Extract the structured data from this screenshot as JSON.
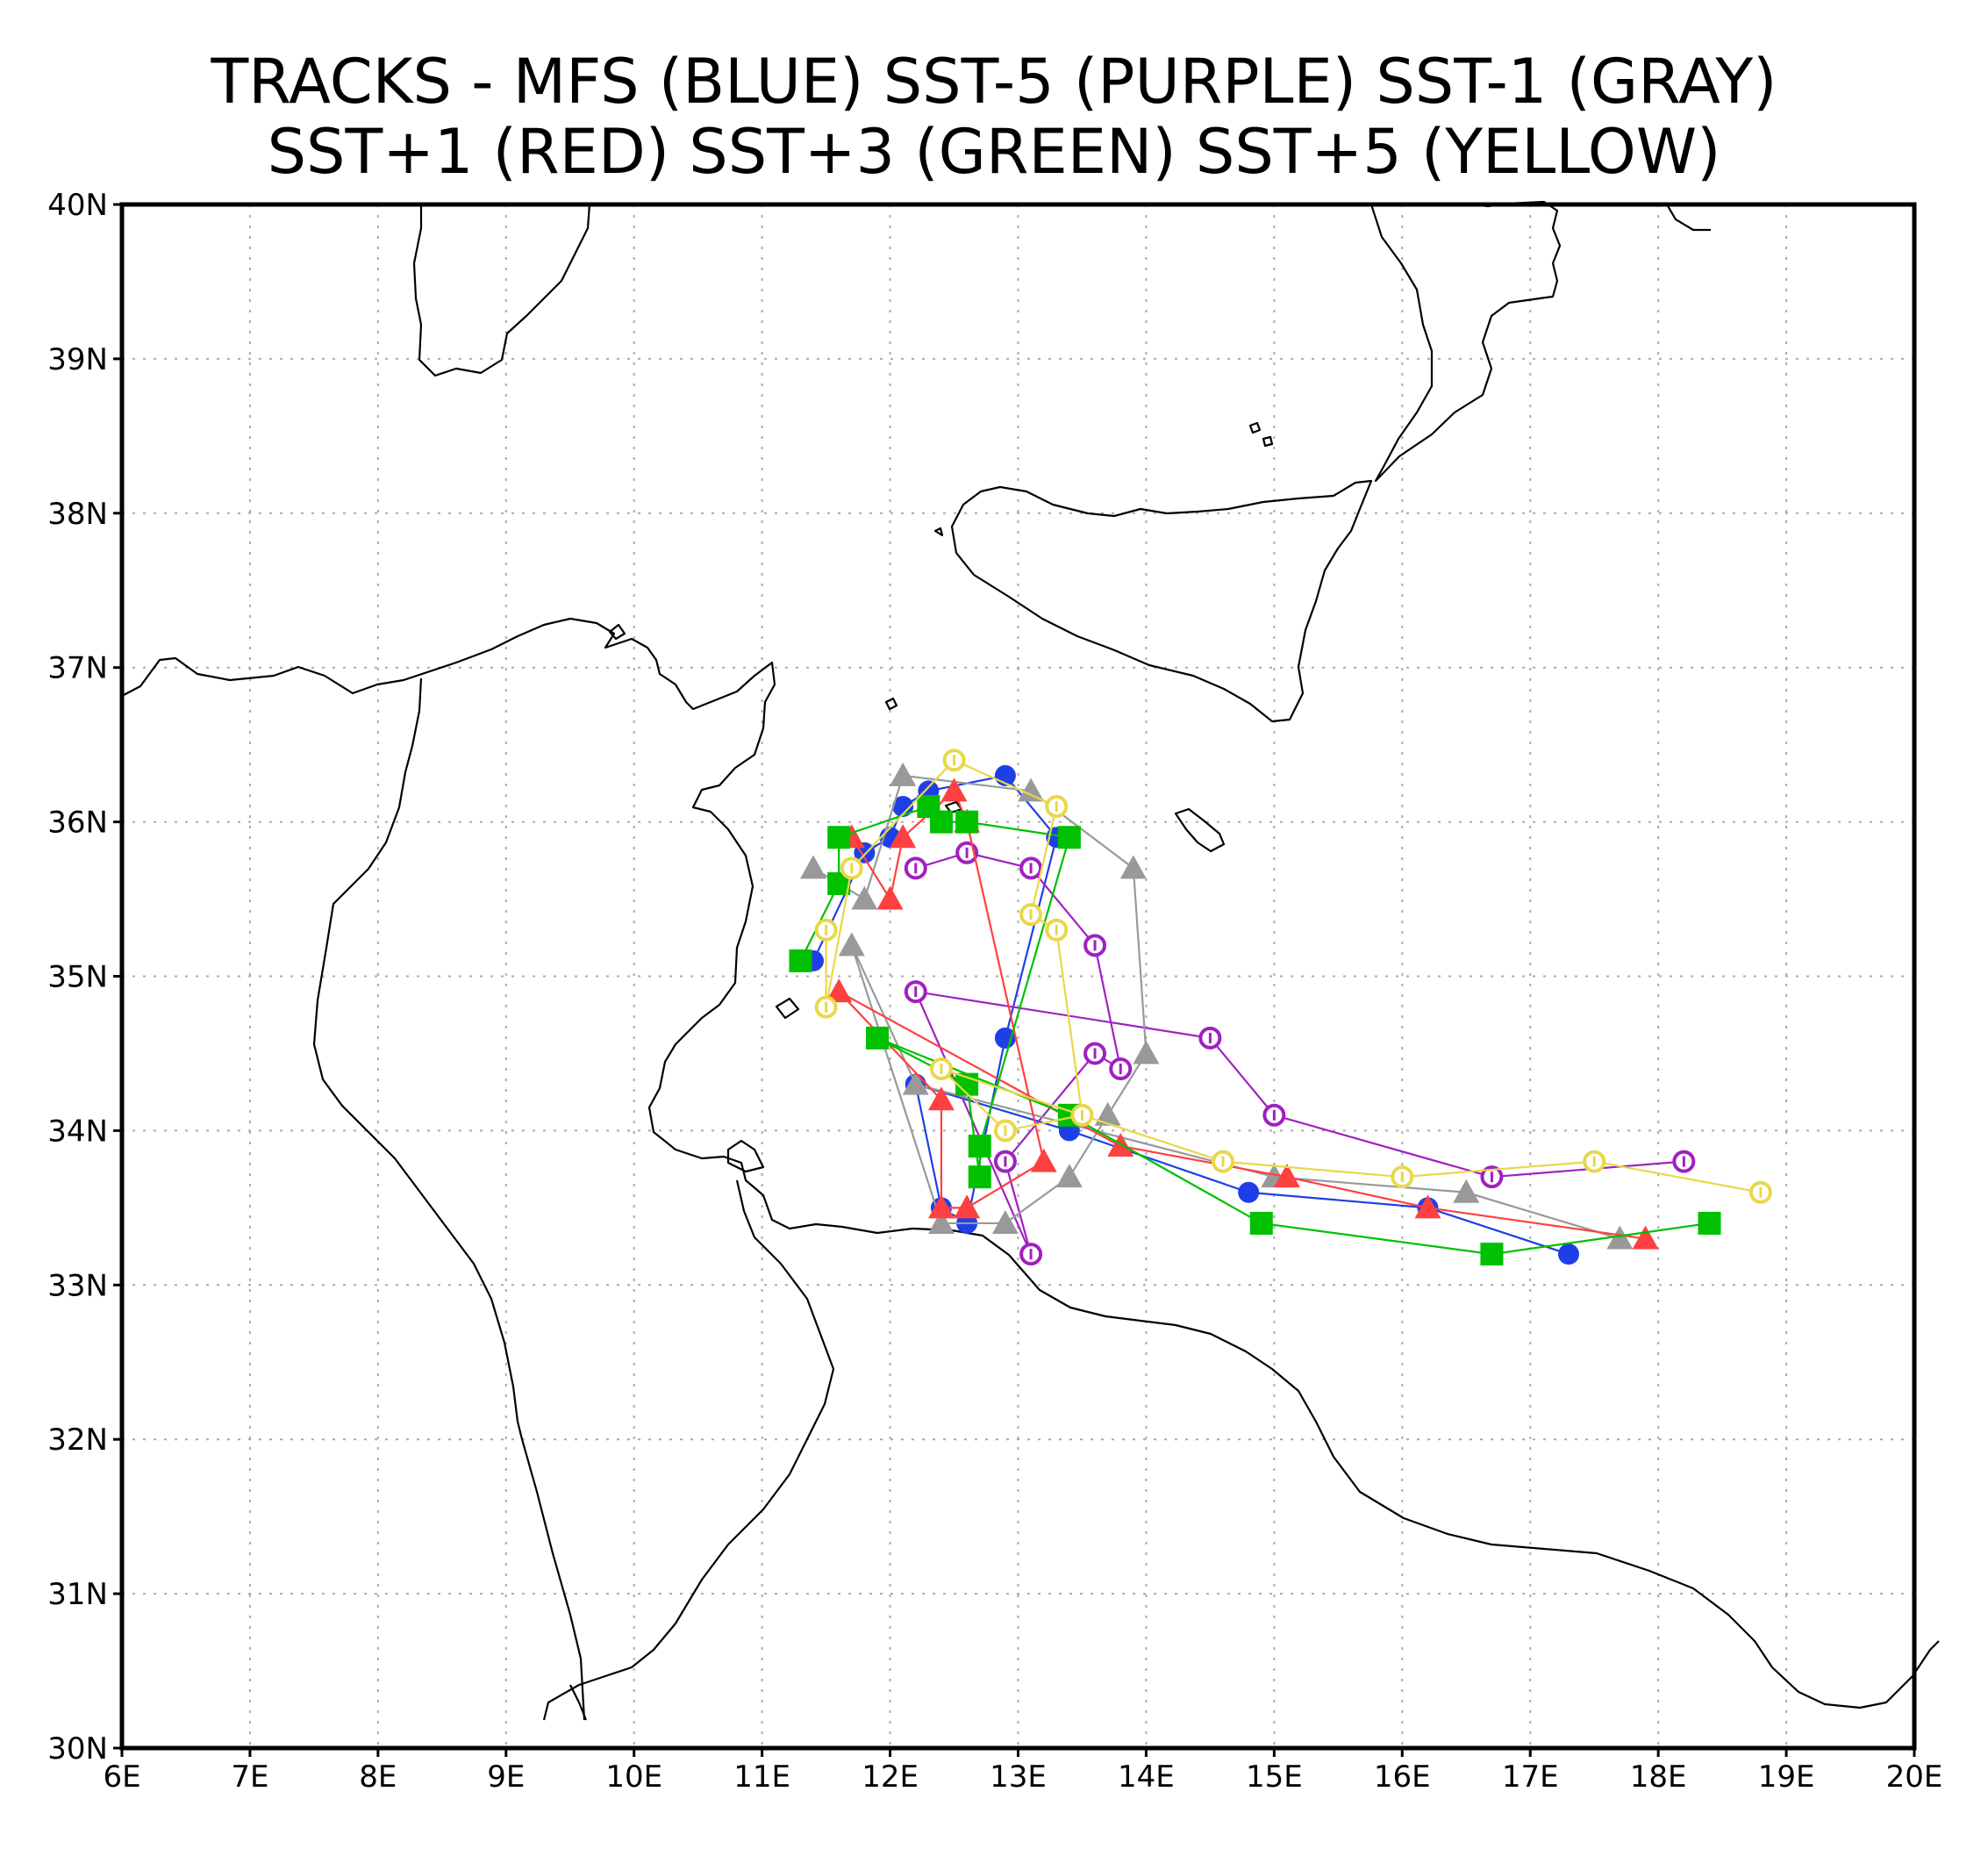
{
  "title": {
    "line1": "TRACKS - MFS (BLUE) SST-5 (PURPLE)  SST-1 (GRAY)",
    "line2": "SST+1 (RED)  SST+3 (GREEN)  SST+5 (YELLOW)"
  },
  "map": {
    "lon_range": [
      6,
      20
    ],
    "lat_range": [
      30,
      40
    ],
    "x_tick_labels": [
      "6E",
      "7E",
      "8E",
      "9E",
      "10E",
      "11E",
      "12E",
      "13E",
      "14E",
      "15E",
      "16E",
      "17E",
      "18E",
      "19E",
      "20E"
    ],
    "y_tick_labels": [
      "30N",
      "31N",
      "32N",
      "33N",
      "34N",
      "35N",
      "36N",
      "37N",
      "38N",
      "39N",
      "40N"
    ],
    "grid": "dotted",
    "coastline_color": "#000000"
  },
  "chart_data": {
    "type": "scatter",
    "xlim": [
      6,
      20
    ],
    "ylim": [
      30,
      40
    ],
    "series": [
      {
        "name": "MFS (BLUE)",
        "color": "#1f3fe6",
        "marker": "circle",
        "points": [
          [
            11.4,
            35.1
          ],
          [
            11.8,
            35.8
          ],
          [
            12.0,
            35.9
          ],
          [
            12.1,
            36.1
          ],
          [
            12.3,
            36.2
          ],
          [
            12.9,
            36.3
          ],
          [
            13.3,
            35.9
          ],
          [
            12.9,
            34.6
          ],
          [
            12.6,
            33.4
          ],
          [
            12.4,
            33.5
          ],
          [
            12.2,
            34.3
          ],
          [
            13.4,
            34.0
          ],
          [
            14.8,
            33.6
          ],
          [
            16.2,
            33.5
          ],
          [
            17.3,
            33.2
          ]
        ]
      },
      {
        "name": "SST-5 (PURPLE)",
        "color": "#a020c0",
        "marker": "circle-o",
        "points": [
          [
            12.2,
            35.7
          ],
          [
            12.6,
            35.8
          ],
          [
            13.1,
            35.7
          ],
          [
            13.6,
            35.2
          ],
          [
            13.8,
            34.4
          ],
          [
            13.6,
            34.5
          ],
          [
            12.9,
            33.8
          ],
          [
            13.1,
            33.2
          ],
          [
            12.2,
            34.9
          ],
          [
            14.5,
            34.6
          ],
          [
            15.0,
            34.1
          ],
          [
            16.7,
            33.7
          ],
          [
            18.2,
            33.8
          ]
        ]
      },
      {
        "name": "SST-1 (GRAY)",
        "color": "#999999",
        "marker": "triangle",
        "points": [
          [
            11.4,
            35.7
          ],
          [
            11.8,
            35.5
          ],
          [
            12.1,
            36.3
          ],
          [
            13.1,
            36.2
          ],
          [
            13.9,
            35.7
          ],
          [
            14.0,
            34.5
          ],
          [
            13.7,
            34.1
          ],
          [
            13.4,
            33.7
          ],
          [
            12.9,
            33.4
          ],
          [
            12.4,
            33.4
          ],
          [
            11.7,
            35.2
          ],
          [
            12.2,
            34.3
          ],
          [
            15.0,
            33.7
          ],
          [
            16.5,
            33.6
          ],
          [
            17.7,
            33.3
          ]
        ]
      },
      {
        "name": "SST+1 (RED)",
        "color": "#ff4040",
        "marker": "triangle",
        "points": [
          [
            11.7,
            35.9
          ],
          [
            12.0,
            35.5
          ],
          [
            12.1,
            35.9
          ],
          [
            12.5,
            36.2
          ],
          [
            12.6,
            36.0
          ],
          [
            13.2,
            33.8
          ],
          [
            12.6,
            33.5
          ],
          [
            12.4,
            33.5
          ],
          [
            12.4,
            34.2
          ],
          [
            11.6,
            34.9
          ],
          [
            13.8,
            33.9
          ],
          [
            15.1,
            33.7
          ],
          [
            16.2,
            33.5
          ],
          [
            17.9,
            33.3
          ]
        ]
      },
      {
        "name": "SST+3 (GREEN)",
        "color": "#00c000",
        "marker": "square",
        "points": [
          [
            11.3,
            35.1
          ],
          [
            11.6,
            35.6
          ],
          [
            11.6,
            35.9
          ],
          [
            12.3,
            36.1
          ],
          [
            12.4,
            36.0
          ],
          [
            12.6,
            36.0
          ],
          [
            13.4,
            35.9
          ],
          [
            12.7,
            33.9
          ],
          [
            12.7,
            33.7
          ],
          [
            12.6,
            34.3
          ],
          [
            11.9,
            34.6
          ],
          [
            13.4,
            34.1
          ],
          [
            14.9,
            33.4
          ],
          [
            16.7,
            33.2
          ],
          [
            18.4,
            33.4
          ]
        ]
      },
      {
        "name": "SST+5 (YELLOW)",
        "color": "#e8d84a",
        "marker": "circle-o",
        "points": [
          [
            11.5,
            35.3
          ],
          [
            11.5,
            34.8
          ],
          [
            11.7,
            35.7
          ],
          [
            12.5,
            36.4
          ],
          [
            13.3,
            36.1
          ],
          [
            13.1,
            35.4
          ],
          [
            13.3,
            35.3
          ],
          [
            13.5,
            34.1
          ],
          [
            12.9,
            34.0
          ],
          [
            12.4,
            34.4
          ],
          [
            14.6,
            33.8
          ],
          [
            16.0,
            33.7
          ],
          [
            17.5,
            33.8
          ],
          [
            18.8,
            33.6
          ]
        ]
      }
    ]
  }
}
